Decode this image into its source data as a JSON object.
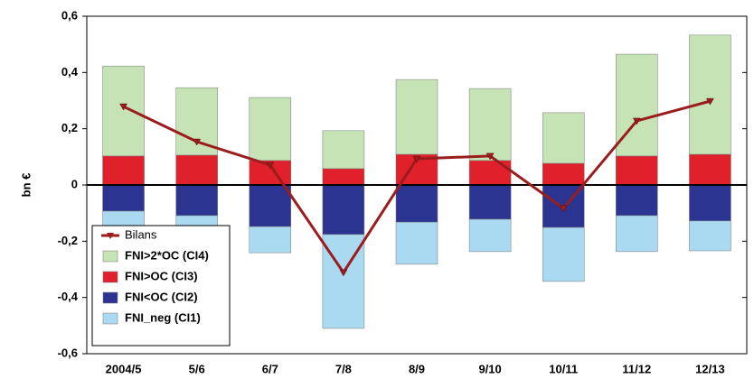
{
  "chart_data": {
    "type": "bar",
    "stacked": true,
    "y_label": "bn €",
    "categories": [
      "2004/5",
      "5/6",
      "6/7",
      "7/8",
      "8/9",
      "9/10",
      "10/11",
      "11/12",
      "12/13"
    ],
    "series": [
      {
        "name": "Bilans",
        "type": "line",
        "color": "#9b1c1c",
        "values": [
          0.279,
          0.154,
          0.071,
          -0.311,
          0.093,
          0.103,
          -0.083,
          0.228,
          0.298
        ]
      },
      {
        "name": "FNI>2*OC (CI4)",
        "color": "#c6e3b6",
        "values": [
          0.32,
          0.24,
          0.224,
          0.135,
          0.266,
          0.256,
          0.18,
          0.362,
          0.424
        ]
      },
      {
        "name": "FNI>OC (CI3)",
        "color": "#e0202b",
        "values": [
          0.103,
          0.106,
          0.087,
          0.058,
          0.109,
          0.087,
          0.077,
          0.103,
          0.109
        ]
      },
      {
        "name": "FNI<OC (CI2)",
        "color": "#2b3591",
        "values": [
          -0.093,
          -0.109,
          -0.148,
          -0.176,
          -0.132,
          -0.122,
          -0.151,
          -0.109,
          -0.128
        ]
      },
      {
        "name": "FNI_neg (CI1)",
        "color": "#aadaf2",
        "values": [
          -0.055,
          -0.084,
          -0.093,
          -0.334,
          -0.15,
          -0.115,
          -0.192,
          -0.128,
          -0.106
        ]
      }
    ],
    "ylim": [
      -0.6,
      0.6
    ],
    "yticks": [
      {
        "value": -0.6,
        "label": "-0,6"
      },
      {
        "value": -0.4,
        "label": "-0,4"
      },
      {
        "value": -0.2,
        "label": "-0,2"
      },
      0,
      {
        "value": 0.2,
        "label": "0,2"
      },
      {
        "value": 0.4,
        "label": "0,4"
      },
      {
        "value": 0.6,
        "label": "0,6"
      }
    ],
    "legend": "lower-left"
  }
}
